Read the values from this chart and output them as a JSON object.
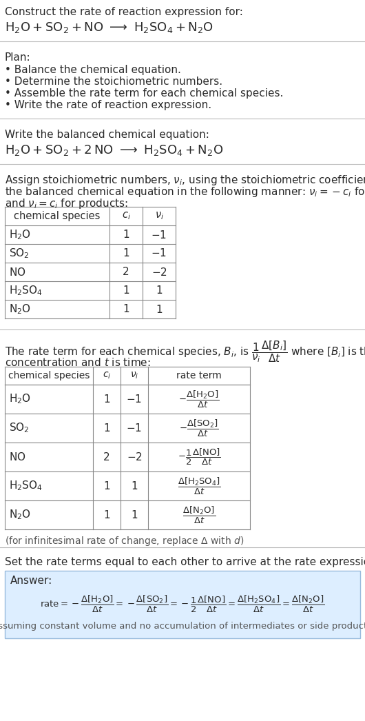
{
  "bg_color": "#ffffff",
  "text_color": "#2a2a2a",
  "light_text": "#555555",
  "table_border_color": "#888888",
  "answer_bg_color": "#ddeeff",
  "answer_border_color": "#99bbdd",
  "fig_w": 5.3,
  "fig_h": 10.46,
  "dpi": 100,
  "species_tex": [
    "$\\mathrm{H_2O}$",
    "$\\mathrm{SO_2}$",
    "$\\mathrm{NO}$",
    "$\\mathrm{H_2SO_4}$",
    "$\\mathrm{N_2O}$"
  ],
  "ci_vals": [
    "1",
    "1",
    "2",
    "1",
    "1"
  ],
  "nu_vals": [
    "$-1$",
    "$-1$",
    "$-2$",
    "$1$",
    "$1$"
  ]
}
